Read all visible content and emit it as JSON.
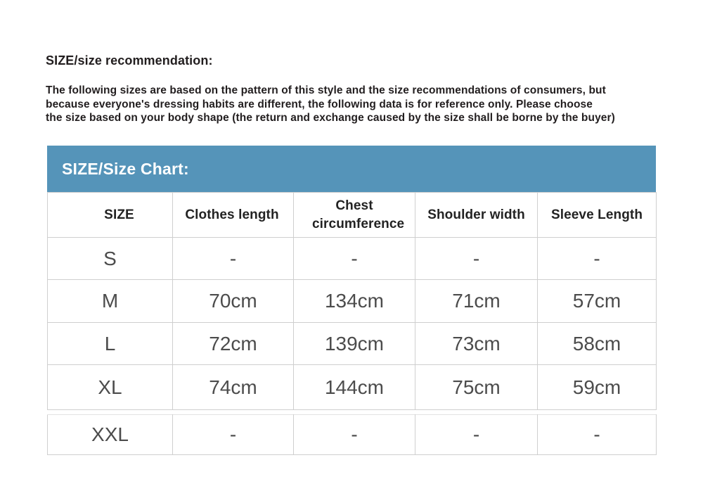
{
  "page": {
    "heading": "SIZE/size recommendation:",
    "paragraph_lines": [
      "The following sizes are based on the pattern of this style and the size recommendations of consumers, but",
      "because everyone's dressing habits are different, the following data is for reference only. Please choose",
      "the size based on your body shape (the return and exchange caused by the size shall be borne by the buyer)"
    ]
  },
  "size_chart": {
    "title": "SIZE/Size Chart:",
    "title_bar_color": "#5594b9",
    "title_text_color": "#ffffff",
    "border_color": "#cfcfcf",
    "columns": [
      "SIZE",
      "Clothes length",
      "Chest circumference",
      "Shoulder width",
      "Sleeve Length"
    ],
    "rows": [
      {
        "size": "S",
        "clothes_length": "-",
        "chest_circumference": "-",
        "shoulder_width": "-",
        "sleeve_length": "-"
      },
      {
        "size": "M",
        "clothes_length": "70cm",
        "chest_circumference": "134cm",
        "shoulder_width": "71cm",
        "sleeve_length": "57cm"
      },
      {
        "size": "L",
        "clothes_length": "72cm",
        "chest_circumference": "139cm",
        "shoulder_width": "73cm",
        "sleeve_length": "58cm"
      },
      {
        "size": "XL",
        "clothes_length": "74cm",
        "chest_circumference": "144cm",
        "shoulder_width": "75cm",
        "sleeve_length": "59cm"
      },
      {
        "size": "XXL",
        "clothes_length": "-",
        "chest_circumference": "-",
        "shoulder_width": "-",
        "sleeve_length": "-"
      }
    ]
  }
}
